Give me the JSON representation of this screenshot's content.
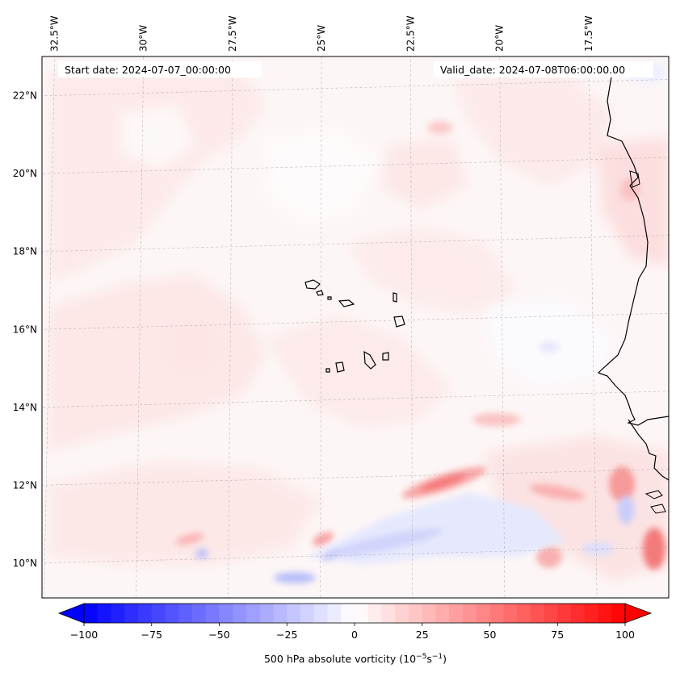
{
  "map": {
    "start_date_label": "Start date: 2024-07-07_00:00:00",
    "valid_date_label": "Valid_date: 2024-07-08T06:00:00.00",
    "longitude_labels": [
      "32.5°W",
      "30°W",
      "27.5°W",
      "25°W",
      "22.5°W",
      "20°W",
      "17.5°W"
    ],
    "latitude_labels": [
      "22°N",
      "20°N",
      "18°N",
      "16°N",
      "14°N",
      "12°N",
      "10°N"
    ],
    "longitudes": [
      -32.5,
      -30,
      -27.5,
      -25,
      -22.5,
      -20,
      -17.5
    ],
    "latitudes": [
      22,
      20,
      18,
      16,
      14,
      12,
      10
    ],
    "extent": {
      "lon_min": -32.7,
      "lon_max": -15.4,
      "lat_min": 8.9,
      "lat_max": 22.8
    },
    "field": "500 hPa absolute vorticity"
  },
  "colorbar": {
    "label_text": "500 hPa absolute vorticity (10",
    "label_exp1": "−5",
    "label_mid": "s",
    "label_exp2": "−1",
    "label_close": ")",
    "ticks": [
      "−100",
      "−75",
      "−50",
      "−25",
      "0",
      "25",
      "50",
      "75",
      "100"
    ],
    "tick_values": [
      -100,
      -75,
      -50,
      -25,
      0,
      25,
      50,
      75,
      100
    ],
    "vmin": -100,
    "vmax": 100,
    "levels": 41,
    "colormap": "bwr",
    "extend": "both"
  }
}
